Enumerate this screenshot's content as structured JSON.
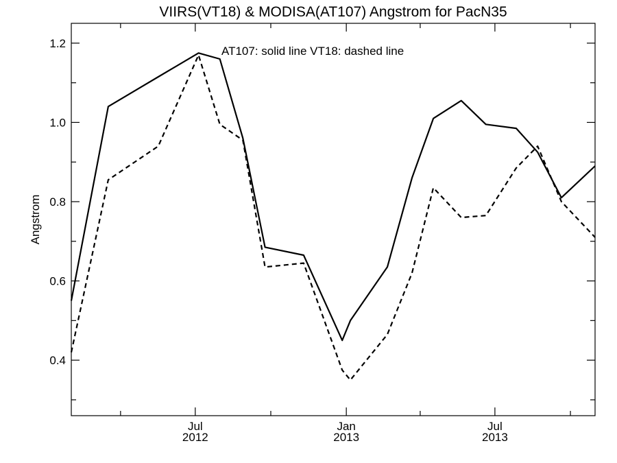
{
  "chart_data": {
    "type": "line",
    "title": "VIIRS(VT18) & MODISA(AT107)  Angstrom for PacN35",
    "ylabel": "Angstrom",
    "xlabel": "",
    "annotation": "AT107: solid line   VT18: dashed line",
    "xlim": [
      "2012-02-01",
      "2013-10-31"
    ],
    "ylim": [
      0.26,
      1.25
    ],
    "y_major_ticks": [
      0.4,
      0.6,
      0.8,
      1.0,
      1.2
    ],
    "y_minor_ticks": [
      0.3,
      0.5,
      0.7,
      0.9,
      1.1
    ],
    "y_tick_labels": [
      "0.4",
      "0.6",
      "0.8",
      "1.0",
      "1.2"
    ],
    "x_major_ticks": [
      {
        "date": "2012-07-01",
        "label1": "Jul",
        "label2": "2012"
      },
      {
        "date": "2013-01-01",
        "label1": "Jan",
        "label2": "2013"
      },
      {
        "date": "2013-07-01",
        "label1": "Jul",
        "label2": "2013"
      }
    ],
    "x_minor_ticks": [
      "2012-04-01",
      "2012-10-01",
      "2013-04-01",
      "2013-10-01"
    ],
    "grid": false,
    "series": [
      {
        "name": "AT107",
        "style": "solid",
        "points": [
          {
            "x": "2012-02-01",
            "y": 0.55
          },
          {
            "x": "2012-03-17",
            "y": 1.04
          },
          {
            "x": "2012-05-17",
            "y": 1.115
          },
          {
            "x": "2012-07-05",
            "y": 1.175
          },
          {
            "x": "2012-07-31",
            "y": 1.16
          },
          {
            "x": "2012-08-28",
            "y": 0.96
          },
          {
            "x": "2012-09-24",
            "y": 0.685
          },
          {
            "x": "2012-11-10",
            "y": 0.665
          },
          {
            "x": "2012-12-27",
            "y": 0.45
          },
          {
            "x": "2013-01-06",
            "y": 0.5
          },
          {
            "x": "2013-02-20",
            "y": 0.635
          },
          {
            "x": "2013-03-22",
            "y": 0.86
          },
          {
            "x": "2013-04-17",
            "y": 1.01
          },
          {
            "x": "2013-05-21",
            "y": 1.055
          },
          {
            "x": "2013-06-20",
            "y": 0.995
          },
          {
            "x": "2013-07-27",
            "y": 0.985
          },
          {
            "x": "2013-08-22",
            "y": 0.925
          },
          {
            "x": "2013-09-20",
            "y": 0.81
          },
          {
            "x": "2013-10-31",
            "y": 0.89
          }
        ]
      },
      {
        "name": "VT18",
        "style": "dashed",
        "points": [
          {
            "x": "2012-02-01",
            "y": 0.42
          },
          {
            "x": "2012-03-17",
            "y": 0.855
          },
          {
            "x": "2012-05-17",
            "y": 0.94
          },
          {
            "x": "2012-07-05",
            "y": 1.17
          },
          {
            "x": "2012-07-31",
            "y": 0.995
          },
          {
            "x": "2012-08-28",
            "y": 0.955
          },
          {
            "x": "2012-09-24",
            "y": 0.635
          },
          {
            "x": "2012-11-10",
            "y": 0.645
          },
          {
            "x": "2012-12-27",
            "y": 0.375
          },
          {
            "x": "2013-01-06",
            "y": 0.35
          },
          {
            "x": "2013-02-20",
            "y": 0.465
          },
          {
            "x": "2013-03-22",
            "y": 0.62
          },
          {
            "x": "2013-04-17",
            "y": 0.835
          },
          {
            "x": "2013-05-21",
            "y": 0.76
          },
          {
            "x": "2013-06-20",
            "y": 0.765
          },
          {
            "x": "2013-07-27",
            "y": 0.885
          },
          {
            "x": "2013-08-22",
            "y": 0.94
          },
          {
            "x": "2013-09-20",
            "y": 0.8
          },
          {
            "x": "2013-10-31",
            "y": 0.71
          }
        ]
      }
    ]
  }
}
